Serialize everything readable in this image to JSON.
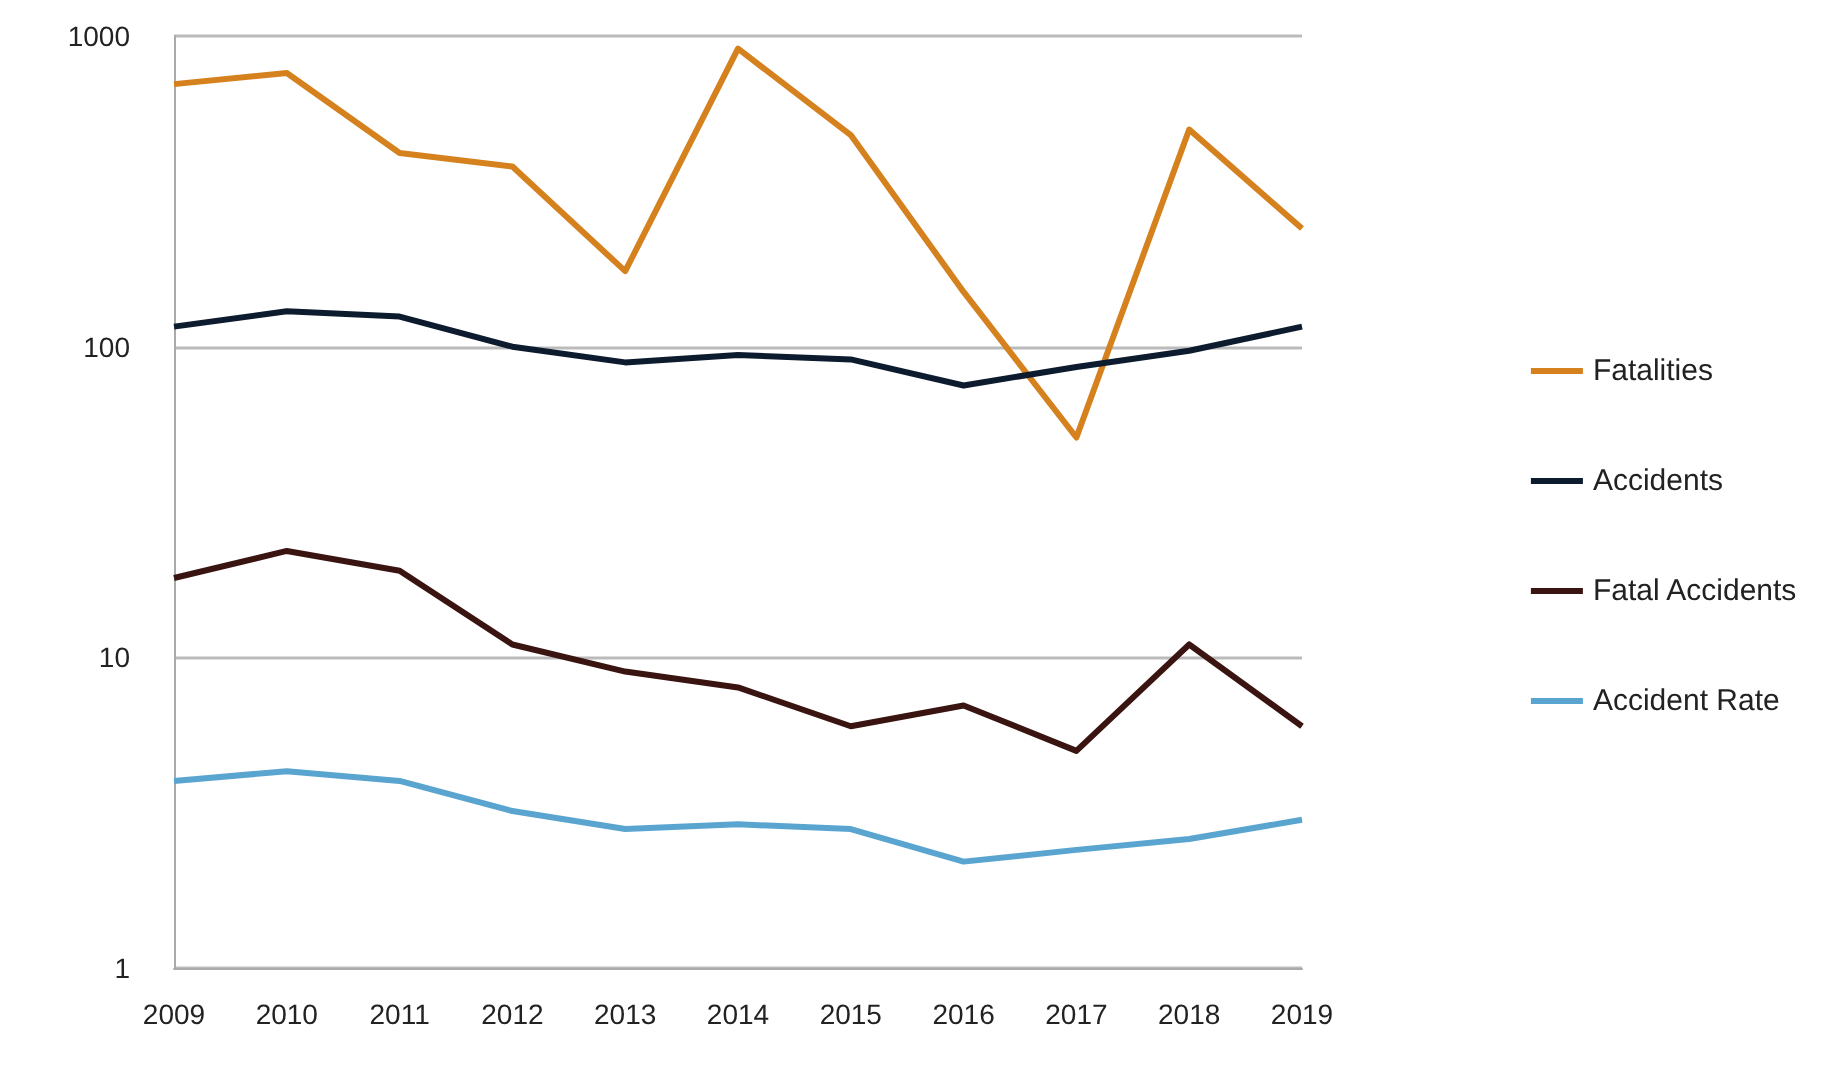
{
  "chart_data": {
    "type": "line",
    "categories": [
      "2009",
      "2010",
      "2011",
      "2012",
      "2013",
      "2014",
      "2015",
      "2016",
      "2017",
      "2018",
      "2019"
    ],
    "series": [
      {
        "name": "Fatalities",
        "color": "#d4811e",
        "values": [
          700,
          760,
          420,
          380,
          175,
          910,
          480,
          150,
          51,
          500,
          240
        ]
      },
      {
        "name": "Accidents",
        "color": "#0d1b2e",
        "values": [
          116,
          130,
          125,
          100,
          89,
          94,
          91,
          75,
          86,
          97,
          116
        ]
      },
      {
        "name": "Fatal Accidents",
        "color": "#3a1410",
        "values": [
          18,
          22,
          19,
          11,
          9,
          8,
          6,
          7,
          5,
          11,
          6
        ]
      },
      {
        "name": "Accident Rate",
        "color": "#5aa5d0",
        "values": [
          4.0,
          4.3,
          4.0,
          3.2,
          2.8,
          2.9,
          2.8,
          2.2,
          2.4,
          2.6,
          3.0
        ]
      }
    ],
    "log": "y",
    "ylim": [
      1,
      1000
    ],
    "yticks": [
      1,
      10,
      100,
      1000
    ],
    "grid": "y",
    "legend": "right",
    "marker": "none",
    "line_style": "solid"
  }
}
